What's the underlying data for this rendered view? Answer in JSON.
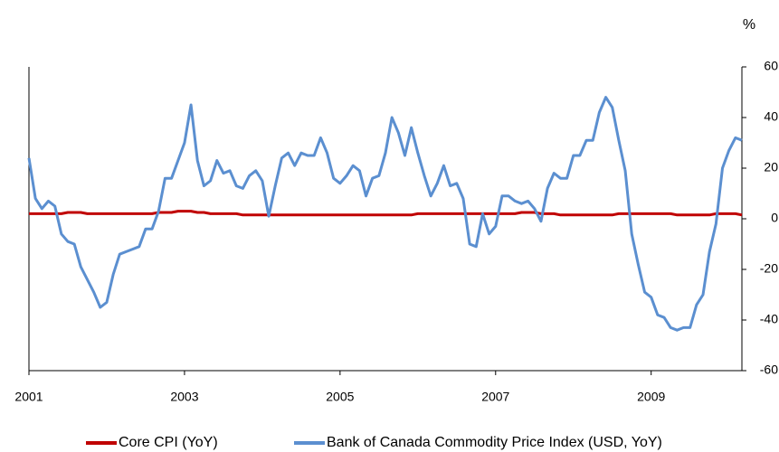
{
  "chart_data": {
    "type": "line",
    "y_label": "%",
    "categories": [
      "2001",
      null,
      null,
      null,
      null,
      null,
      null,
      null,
      null,
      null,
      null,
      null,
      null,
      null,
      null,
      null,
      null,
      null,
      null,
      null,
      null,
      null,
      null,
      null,
      "2003",
      null,
      null,
      null,
      null,
      null,
      null,
      null,
      null,
      null,
      null,
      null,
      null,
      null,
      null,
      null,
      null,
      null,
      null,
      null,
      null,
      null,
      null,
      null,
      "2005",
      null,
      null,
      null,
      null,
      null,
      null,
      null,
      null,
      null,
      null,
      null,
      null,
      null,
      null,
      null,
      null,
      null,
      null,
      null,
      null,
      null,
      null,
      null,
      "2007",
      null,
      null,
      null,
      null,
      null,
      null,
      null,
      null,
      null,
      null,
      null,
      null,
      null,
      null,
      null,
      null,
      null,
      null,
      null,
      null,
      null,
      null,
      null,
      "2009",
      null,
      null,
      null,
      null,
      null,
      null,
      null,
      null,
      null,
      null,
      null,
      null,
      null,
      null
    ],
    "series": [
      {
        "name": "Core CPI (YoY)",
        "color": "#c00000",
        "values": [
          2,
          2,
          2,
          2,
          2,
          2,
          2.5,
          2.5,
          2.5,
          2,
          2,
          2,
          2,
          2,
          2,
          2,
          2,
          2,
          2,
          2,
          2.5,
          2.5,
          2.5,
          3,
          3,
          3,
          2.5,
          2.5,
          2,
          2,
          2,
          2,
          2,
          1.5,
          1.5,
          1.5,
          1.5,
          1.5,
          1.5,
          1.5,
          1.5,
          1.5,
          1.5,
          1.5,
          1.5,
          1.5,
          1.5,
          1.5,
          1.5,
          1.5,
          1.5,
          1.5,
          1.5,
          1.5,
          1.5,
          1.5,
          1.5,
          1.5,
          1.5,
          1.5,
          2,
          2,
          2,
          2,
          2,
          2,
          2,
          2,
          2,
          2,
          2,
          2,
          2,
          2,
          2,
          2,
          2.5,
          2.5,
          2.5,
          2,
          2,
          2,
          1.5,
          1.5,
          1.5,
          1.5,
          1.5,
          1.5,
          1.5,
          1.5,
          1.5,
          2,
          2,
          2,
          2,
          2,
          2,
          2,
          2,
          2,
          1.5,
          1.5,
          1.5,
          1.5,
          1.5,
          1.5,
          2,
          2,
          2,
          2,
          1.5
        ]
      },
      {
        "name": "Bank of Canada Commodity Price Index (USD, YoY)",
        "color": "#5b8fd0",
        "values": [
          24,
          8,
          4,
          7,
          5,
          -6,
          -9,
          -10,
          -19,
          -24,
          -29,
          -35,
          -33,
          -22,
          -14,
          -13,
          -12,
          -11,
          -4,
          -4,
          3,
          16,
          16,
          23,
          30,
          45,
          23,
          13,
          15,
          23,
          18,
          19,
          13,
          12,
          17,
          19,
          15,
          1,
          13,
          24,
          26,
          21,
          26,
          25,
          25,
          32,
          26,
          16,
          14,
          17,
          21,
          19,
          9,
          16,
          17,
          26,
          40,
          34,
          25,
          36,
          26,
          17,
          9,
          14,
          21,
          13,
          14,
          8,
          -10,
          -11,
          2,
          -6,
          -3,
          9,
          9,
          7,
          6,
          7,
          4,
          -1,
          12,
          18,
          16,
          16,
          25,
          25,
          31,
          31,
          42,
          48,
          44,
          31,
          19,
          -6,
          -18,
          -29,
          -31,
          -38,
          -39,
          -43,
          -44,
          -43,
          -43,
          -34,
          -30,
          -13,
          -2,
          20,
          27,
          32,
          31
        ]
      }
    ],
    "ylim": [
      -60,
      60
    ],
    "yticks": [
      -60,
      -40,
      -20,
      0,
      20,
      40,
      60
    ]
  }
}
